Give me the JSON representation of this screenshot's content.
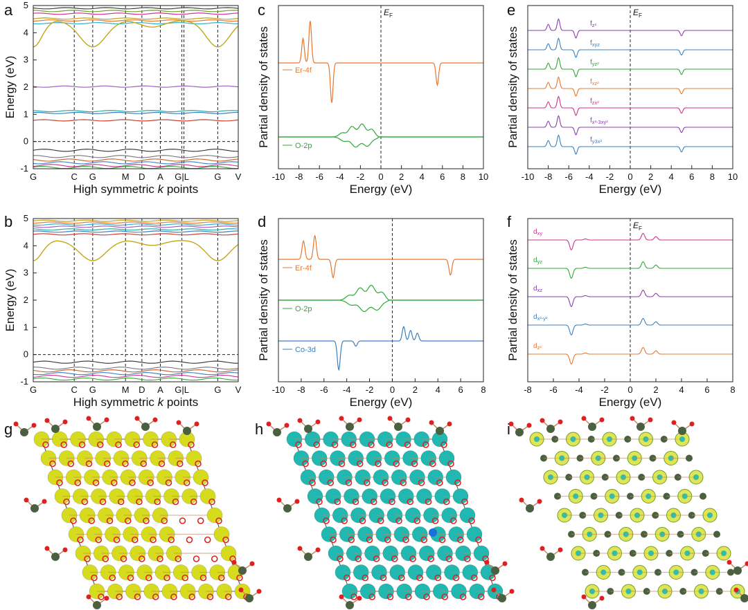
{
  "panel_labels": {
    "a": "a",
    "b": "b",
    "c": "c",
    "d": "d",
    "e": "e",
    "f": "f",
    "g": "g",
    "h": "h",
    "i": "i"
  },
  "colors": {
    "er4f": "#e8772e",
    "o2p": "#2ea836",
    "co3d": "#3a7fc0",
    "purple": "#8a3fa8",
    "blue": "#3a7fc0",
    "green": "#2ea836",
    "orange": "#e8772e",
    "magenta": "#d0338f",
    "yellow_iso": "#d6db1e",
    "cyan_iso": "#20b8b0",
    "atom_red": "#e02020",
    "atom_dark": "#4a6040",
    "bond": "#c08a60"
  },
  "chart_data": [
    {
      "id": "a",
      "type": "line",
      "xlabel_pre": "High symmetric ",
      "xlabel_k": "k",
      "xlabel_post": " points",
      "ylabel": "Energy (eV)",
      "ylim": [
        -1,
        5
      ],
      "yticks": [
        "-1",
        "0",
        "1",
        "2",
        "3",
        "4",
        "5"
      ],
      "kpoints": [
        "G",
        "C",
        "G",
        "M",
        "D",
        "A",
        "G|L",
        "G",
        "V"
      ],
      "flat_bands": [
        0.78,
        1.05,
        1.12,
        2.02,
        4.35,
        4.45,
        4.52,
        4.7,
        4.8,
        4.9
      ],
      "valence_bands": [
        -0.32,
        -0.55,
        -0.68,
        -0.78,
        -0.88,
        -0.95
      ],
      "dispersive_band": {
        "min": 3.48,
        "max": 4.45
      },
      "fermi_level": 0
    },
    {
      "id": "b",
      "type": "line",
      "xlabel_pre": "High symmetric ",
      "xlabel_k": "k",
      "xlabel_post": " points",
      "ylabel": "Energy (eV)",
      "ylim": [
        -1,
        5
      ],
      "yticks": [
        "-1",
        "0",
        "1",
        "2",
        "3",
        "4",
        "5"
      ],
      "kpoints": [
        "G",
        "C",
        "G",
        "M",
        "D",
        "A",
        "G|L",
        "G",
        "V"
      ],
      "flat_bands": [
        4.42,
        4.52,
        4.6,
        4.7,
        4.78,
        4.85,
        4.92
      ],
      "valence_bands": [
        -0.28,
        -0.5,
        -0.6,
        -0.7,
        -0.8,
        -0.9
      ],
      "dispersive_band": {
        "min": 3.45,
        "max": 4.2
      },
      "fermi_level": 0
    },
    {
      "id": "c",
      "type": "line",
      "xlabel": "Energy (eV)",
      "ylabel": "Partial density of states",
      "xlim": [
        -10,
        10
      ],
      "xticks": [
        "-10",
        "-8",
        "-6",
        "-4",
        "-2",
        "0",
        "2",
        "4",
        "6",
        "8",
        "10"
      ],
      "fermi_label": "E",
      "fermi_sub": "F",
      "series": [
        {
          "name": "Er-4f",
          "color_key": "er4f",
          "up_peaks": [
            [
              -7.6,
              0.55
            ],
            [
              -6.9,
              0.95
            ]
          ],
          "down_peaks": [
            [
              -4.8,
              -0.9
            ],
            [
              5.5,
              -0.5
            ]
          ]
        },
        {
          "name": "O-2p",
          "color_key": "o2p",
          "band": [
            -4.6,
            -0.2
          ],
          "band_amp": 0.42
        }
      ]
    },
    {
      "id": "d",
      "type": "line",
      "xlabel": "Energy (eV)",
      "ylabel": "Partial density of states",
      "xlim": [
        -10,
        8
      ],
      "xticks": [
        "-10",
        "-8",
        "-6",
        "-4",
        "-2",
        "0",
        "2",
        "4",
        "6",
        "8"
      ],
      "series": [
        {
          "name": "Er-4f",
          "color_key": "er4f",
          "up_peaks": [
            [
              -7.8,
              0.7
            ],
            [
              -6.8,
              0.9
            ]
          ],
          "down_peaks": [
            [
              -5.2,
              -0.7
            ],
            [
              5.1,
              -0.6
            ]
          ]
        },
        {
          "name": "O-2p",
          "color_key": "o2p",
          "band": [
            -4.6,
            -0.3
          ],
          "band_amp": 0.55
        },
        {
          "name": "Co-3d",
          "color_key": "co3d",
          "up_peaks": [
            [
              1.0,
              0.55
            ],
            [
              1.6,
              0.4
            ],
            [
              2.2,
              0.3
            ]
          ],
          "down_peaks": [
            [
              -4.7,
              -1.1
            ],
            [
              -3.2,
              -0.2
            ]
          ]
        }
      ]
    },
    {
      "id": "e",
      "type": "line",
      "xlabel": "Energy (eV)",
      "ylabel": "Partial density of states",
      "xlim": [
        -10,
        10
      ],
      "xticks": [
        "-10",
        "-8",
        "-6",
        "-4",
        "-2",
        "0",
        "2",
        "4",
        "6",
        "8",
        "10"
      ],
      "fermi_label": "E",
      "fermi_sub": "F",
      "series": [
        {
          "base": "f",
          "sub": "z³",
          "color_key": "purple"
        },
        {
          "base": "f",
          "sub": "xyz",
          "color_key": "blue"
        },
        {
          "base": "f",
          "sub": "yz²",
          "color_key": "green"
        },
        {
          "base": "f",
          "sub": "xz²",
          "color_key": "orange"
        },
        {
          "base": "f",
          "sub": "zx²",
          "color_key": "magenta"
        },
        {
          "base": "f",
          "sub": "x³-3xy²",
          "color_key": "purple"
        },
        {
          "base": "f",
          "sub": "y3x²",
          "color_key": "blue"
        }
      ]
    },
    {
      "id": "f",
      "type": "line",
      "xlabel": "Energy (eV)",
      "ylabel": "Partial density of states",
      "xlim": [
        -8,
        8
      ],
      "xticks": [
        "-8",
        "-6",
        "-4",
        "-2",
        "0",
        "2",
        "4",
        "6",
        "8"
      ],
      "fermi_label": "E",
      "fermi_sub": "F",
      "series": [
        {
          "base": "d",
          "sub": "xy",
          "color_key": "magenta"
        },
        {
          "base": "d",
          "sub": "yz",
          "color_key": "green"
        },
        {
          "base": "d",
          "sub": "xz",
          "color_key": "purple"
        },
        {
          "base": "d",
          "sub": "x²-y²",
          "color_key": "blue"
        },
        {
          "base": "d",
          "sub": "z²",
          "color_key": "orange"
        }
      ]
    }
  ]
}
